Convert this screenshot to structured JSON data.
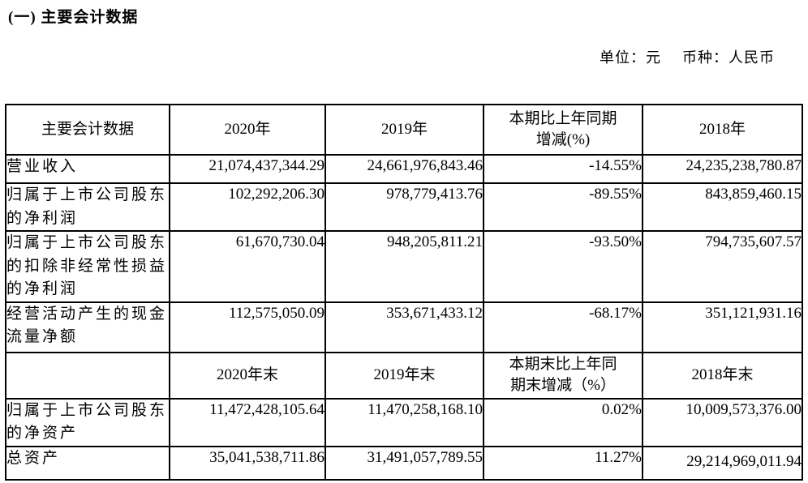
{
  "title": "(一) 主要会计数据",
  "meta": {
    "unit": "单位：元",
    "currency": "币种：人民币"
  },
  "table": {
    "header_top": {
      "c0": "主要会计数据",
      "c1": "2020年",
      "c2": "2019年",
      "c3": "本期比上年同期\n增减(%)",
      "c4": "2018年"
    },
    "rows": [
      {
        "label": "营业收入",
        "y2020": "21,074,437,344.29",
        "y2019": "24,661,976,843.46",
        "change": "-14.55%",
        "y2018": "24,235,238,780.87"
      },
      {
        "label": "归属于上市公司股东的净利润",
        "y2020": "102,292,206.30",
        "y2019": "978,779,413.76",
        "change": "-89.55%",
        "y2018": "843,859,460.15"
      },
      {
        "label": "归属于上市公司股东的扣除非经常性损益的净利润",
        "y2020": "61,670,730.04",
        "y2019": "948,205,811.21",
        "change": "-93.50%",
        "y2018": "794,735,607.57"
      },
      {
        "label": "经营活动产生的现金流量净额",
        "y2020": "112,575,050.09",
        "y2019": "353,671,433.12",
        "change": "-68.17%",
        "y2018": "351,121,931.16"
      }
    ],
    "header_mid": {
      "c0": "",
      "c1": "2020年末",
      "c2": "2019年末",
      "c3": "本期末比上年同\n期末增减（%）",
      "c4": "2018年末"
    },
    "rows_end": [
      {
        "label": "归属于上市公司股东的净资产",
        "y2020": "11,472,428,105.64",
        "y2019": "11,470,258,168.10",
        "change": "0.02%",
        "y2018": "10,009,573,376.00"
      },
      {
        "label": "总资产",
        "y2020": "35,041,538,711.86",
        "y2019": "31,491,057,789.55",
        "change": "11.27%",
        "y2018": "29,214,969,011.94"
      }
    ]
  }
}
